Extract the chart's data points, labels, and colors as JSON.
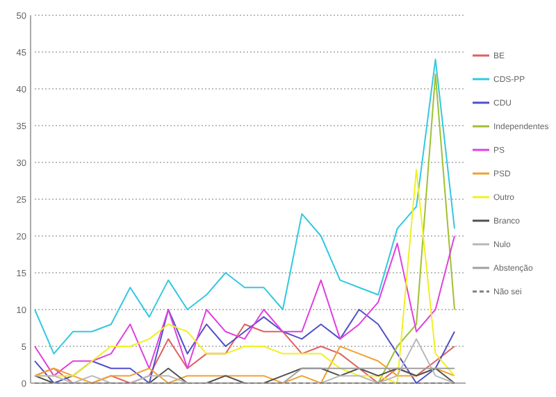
{
  "chart_data": {
    "type": "line",
    "categories": [
      null,
      null,
      null,
      null,
      null,
      null,
      null,
      null,
      null,
      null,
      null,
      null,
      null,
      null,
      null,
      null,
      null,
      null,
      null,
      null,
      null,
      null,
      null
    ],
    "ylim": [
      0,
      50
    ],
    "yticks": [
      0,
      5,
      10,
      15,
      20,
      25,
      30,
      35,
      40,
      45,
      50
    ],
    "grid": "y",
    "legend": "right",
    "series": [
      {
        "name": "BE",
        "color": "#e06060",
        "values": [
          1,
          2,
          0,
          0,
          1,
          0,
          1,
          6,
          2,
          4,
          4,
          8,
          7,
          7,
          4,
          5,
          4,
          2,
          0,
          2,
          1,
          3,
          5
        ]
      },
      {
        "name": "CDS-PP",
        "color": "#33c8e0",
        "values": [
          10,
          4,
          7,
          7,
          8,
          13,
          9,
          14,
          10,
          12,
          15,
          13,
          13,
          10,
          23,
          20,
          14,
          13,
          12,
          21,
          24,
          44,
          21
        ]
      },
      {
        "name": "CDU",
        "color": "#5050c8",
        "values": [
          3,
          0,
          1,
          3,
          2,
          2,
          0,
          10,
          4,
          8,
          5,
          7,
          9,
          7,
          6,
          8,
          6,
          10,
          8,
          4,
          0,
          2,
          7
        ]
      },
      {
        "name": "Independentes",
        "color": "#a0c030",
        "values": [
          null,
          null,
          null,
          null,
          null,
          null,
          null,
          null,
          null,
          null,
          null,
          null,
          null,
          null,
          null,
          null,
          null,
          null,
          0,
          5,
          8,
          42,
          10
        ]
      },
      {
        "name": "PS",
        "color": "#e040e0",
        "values": [
          5,
          1,
          3,
          3,
          4,
          8,
          2,
          10,
          2,
          10,
          7,
          6,
          10,
          7,
          7,
          14,
          6,
          8,
          11,
          19,
          7,
          10,
          20
        ]
      },
      {
        "name": "PSD",
        "color": "#f0a030",
        "values": [
          1,
          2,
          1,
          0,
          1,
          1,
          2,
          0,
          1,
          1,
          1,
          1,
          1,
          0,
          1,
          0,
          5,
          4,
          3,
          1,
          1,
          2,
          1
        ]
      },
      {
        "name": "Outro",
        "color": "#f0f020",
        "values": [
          1,
          1,
          1,
          3,
          5,
          5,
          6,
          8,
          7,
          4,
          4,
          5,
          5,
          4,
          4,
          4,
          2,
          1,
          1,
          0,
          29,
          4,
          1
        ]
      },
      {
        "name": "Branco",
        "color": "#505050",
        "values": [
          1,
          0,
          0,
          0,
          0,
          0,
          0,
          2,
          0,
          0,
          1,
          0,
          0,
          1,
          2,
          2,
          1,
          2,
          1,
          2,
          1,
          2,
          0
        ]
      },
      {
        "name": "Nulo",
        "color": "#b8b8b8",
        "values": [
          1,
          1,
          0,
          1,
          0,
          0,
          1,
          1,
          0,
          0,
          0,
          0,
          0,
          0,
          0,
          0,
          1,
          1,
          0,
          1,
          6,
          1,
          0
        ]
      },
      {
        "name": "Abstenção",
        "color": "#a0a0a0",
        "values": [
          0,
          0,
          0,
          0,
          0,
          0,
          0,
          0,
          0,
          0,
          0,
          0,
          0,
          0,
          2,
          2,
          2,
          2,
          2,
          2,
          2,
          2,
          2
        ]
      },
      {
        "name": "Não sei",
        "color": "#808080",
        "line_style": "dashed",
        "values": [
          0,
          0,
          0,
          0,
          0,
          0,
          0,
          0,
          0,
          0,
          0,
          0,
          0,
          0,
          0,
          0,
          0,
          0,
          0,
          0,
          0,
          0,
          0
        ]
      }
    ]
  }
}
